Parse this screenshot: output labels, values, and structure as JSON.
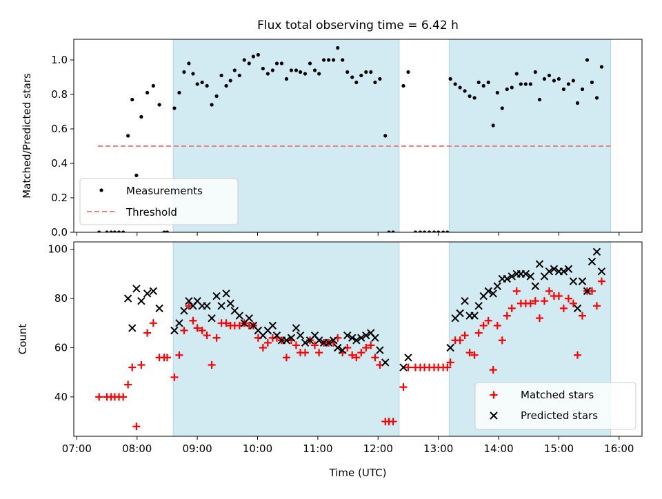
{
  "chart_data": {
    "title": "Flux total observing time = 6.42 h",
    "xlabel": "Time (UTC)",
    "xlim": [
      6.95,
      16.38
    ],
    "xticks": [
      {
        "v": 7,
        "label": "07:00"
      },
      {
        "v": 8,
        "label": "08:00"
      },
      {
        "v": 9,
        "label": "09:00"
      },
      {
        "v": 10,
        "label": "10:00"
      },
      {
        "v": 11,
        "label": "11:00"
      },
      {
        "v": 12,
        "label": "12:00"
      },
      {
        "v": 13,
        "label": "13:00"
      },
      {
        "v": 14,
        "label": "14:00"
      },
      {
        "v": 15,
        "label": "15:00"
      },
      {
        "v": 16,
        "label": "16:00"
      }
    ],
    "shaded_spans": [
      [
        8.6,
        12.35
      ],
      [
        13.18,
        15.86
      ]
    ],
    "shade_color": "#add8e6",
    "top": {
      "type": "scatter",
      "ylabel": "Matched/Predicted stars",
      "ylim": [
        0,
        1.12
      ],
      "yticks": [
        {
          "v": 0,
          "label": "0.0"
        },
        {
          "v": 0.2,
          "label": "0.2"
        },
        {
          "v": 0.4,
          "label": "0.4"
        },
        {
          "v": 0.6,
          "label": "0.6"
        },
        {
          "v": 0.8,
          "label": "0.8"
        },
        {
          "v": 1.0,
          "label": "1.0"
        }
      ],
      "threshold": {
        "value": 0.5,
        "x_range": [
          7.35,
          15.86
        ],
        "color": "#f08080"
      },
      "legend": {
        "position": "lower-left",
        "measurements_label": "Measurements",
        "threshold_label": "Threshold"
      },
      "measurements": [
        [
          7.37,
          0
        ],
        [
          7.5,
          0
        ],
        [
          7.57,
          0
        ],
        [
          7.63,
          0
        ],
        [
          7.7,
          0
        ],
        [
          7.77,
          0
        ],
        [
          7.85,
          0.56
        ],
        [
          7.92,
          0.77
        ],
        [
          7.99,
          0.33
        ],
        [
          8.07,
          0.67
        ],
        [
          8.17,
          0.81
        ],
        [
          8.27,
          0.85
        ],
        [
          8.37,
          0.74
        ],
        [
          8.45,
          0
        ],
        [
          8.5,
          0
        ],
        [
          8.62,
          0.72
        ],
        [
          8.7,
          0.81
        ],
        [
          8.78,
          0.93
        ],
        [
          8.86,
          0.98
        ],
        [
          8.93,
          0.92
        ],
        [
          9.0,
          0.86
        ],
        [
          9.08,
          0.87
        ],
        [
          9.16,
          0.85
        ],
        [
          9.24,
          0.74
        ],
        [
          9.32,
          0.79
        ],
        [
          9.4,
          0.91
        ],
        [
          9.48,
          0.85
        ],
        [
          9.55,
          0.88
        ],
        [
          9.62,
          0.94
        ],
        [
          9.7,
          0.91
        ],
        [
          9.78,
          1.0
        ],
        [
          9.86,
          0.98
        ],
        [
          9.93,
          1.02
        ],
        [
          10.01,
          1.03
        ],
        [
          10.09,
          0.95
        ],
        [
          10.17,
          0.92
        ],
        [
          10.25,
          0.94
        ],
        [
          10.32,
          0.98
        ],
        [
          10.4,
          0.98
        ],
        [
          10.48,
          0.89
        ],
        [
          10.56,
          0.94
        ],
        [
          10.64,
          0.94
        ],
        [
          10.71,
          0.93
        ],
        [
          10.79,
          0.92
        ],
        [
          10.87,
          0.98
        ],
        [
          10.95,
          0.94
        ],
        [
          11.02,
          0.92
        ],
        [
          11.1,
          1.0
        ],
        [
          11.18,
          1.0
        ],
        [
          11.26,
          1.0
        ],
        [
          11.33,
          1.07
        ],
        [
          11.41,
          1.0
        ],
        [
          11.49,
          0.93
        ],
        [
          11.57,
          0.9
        ],
        [
          11.64,
          0.87
        ],
        [
          11.72,
          0.91
        ],
        [
          11.8,
          0.93
        ],
        [
          11.88,
          0.93
        ],
        [
          11.95,
          0.87
        ],
        [
          12.03,
          0.89
        ],
        [
          12.12,
          0.56
        ],
        [
          12.18,
          0
        ],
        [
          12.25,
          0
        ],
        [
          12.42,
          0.85
        ],
        [
          12.5,
          0.93
        ],
        [
          12.62,
          0
        ],
        [
          12.7,
          0
        ],
        [
          12.77,
          0
        ],
        [
          12.85,
          0
        ],
        [
          12.93,
          0
        ],
        [
          13.0,
          0
        ],
        [
          13.08,
          0
        ],
        [
          13.15,
          0
        ],
        [
          13.2,
          0.89
        ],
        [
          13.28,
          0.86
        ],
        [
          13.36,
          0.84
        ],
        [
          13.44,
          0.82
        ],
        [
          13.52,
          0.79
        ],
        [
          13.6,
          0.78
        ],
        [
          13.67,
          0.87
        ],
        [
          13.75,
          0.85
        ],
        [
          13.83,
          0.87
        ],
        [
          13.91,
          0.62
        ],
        [
          13.98,
          0.81
        ],
        [
          14.06,
          0.72
        ],
        [
          14.14,
          0.83
        ],
        [
          14.22,
          0.84
        ],
        [
          14.3,
          0.92
        ],
        [
          14.37,
          0.86
        ],
        [
          14.45,
          0.86
        ],
        [
          14.53,
          0.86
        ],
        [
          14.61,
          0.93
        ],
        [
          14.68,
          0.77
        ],
        [
          14.76,
          0.89
        ],
        [
          14.84,
          0.91
        ],
        [
          14.92,
          0.88
        ],
        [
          15.0,
          0.89
        ],
        [
          15.08,
          0.83
        ],
        [
          15.16,
          0.86
        ],
        [
          15.24,
          0.88
        ],
        [
          15.31,
          0.75
        ],
        [
          15.39,
          0.83
        ],
        [
          15.47,
          1.0
        ],
        [
          15.55,
          0.87
        ],
        [
          15.63,
          0.78
        ],
        [
          15.71,
          0.96
        ]
      ]
    },
    "bottom": {
      "type": "scatter",
      "ylabel": "Count",
      "ylim": [
        24,
        103
      ],
      "yticks": [
        {
          "v": 40,
          "label": "40"
        },
        {
          "v": 60,
          "label": "60"
        },
        {
          "v": 80,
          "label": "80"
        },
        {
          "v": 100,
          "label": "100"
        }
      ],
      "legend": {
        "position": "lower-right",
        "matched_label": "Matched stars",
        "predicted_label": "Predicted stars"
      },
      "matched_color": "#ff0000",
      "predicted_color": "#000000",
      "matched": [
        [
          7.37,
          40
        ],
        [
          7.5,
          40
        ],
        [
          7.57,
          40
        ],
        [
          7.63,
          40
        ],
        [
          7.7,
          40
        ],
        [
          7.77,
          40
        ],
        [
          7.85,
          45
        ],
        [
          7.92,
          52
        ],
        [
          7.99,
          28
        ],
        [
          8.07,
          53
        ],
        [
          8.17,
          66
        ],
        [
          8.27,
          70
        ],
        [
          8.37,
          56
        ],
        [
          8.45,
          56
        ],
        [
          8.5,
          56
        ],
        [
          8.62,
          48
        ],
        [
          8.7,
          57
        ],
        [
          8.78,
          67
        ],
        [
          8.86,
          77
        ],
        [
          8.93,
          71
        ],
        [
          9.0,
          68
        ],
        [
          9.08,
          67
        ],
        [
          9.16,
          65
        ],
        [
          9.24,
          53
        ],
        [
          9.32,
          64
        ],
        [
          9.4,
          70
        ],
        [
          9.48,
          70
        ],
        [
          9.55,
          69
        ],
        [
          9.62,
          69
        ],
        [
          9.7,
          69
        ],
        [
          9.78,
          70
        ],
        [
          9.86,
          69
        ],
        [
          9.93,
          69
        ],
        [
          10.01,
          64
        ],
        [
          10.09,
          60
        ],
        [
          10.17,
          62
        ],
        [
          10.25,
          64
        ],
        [
          10.32,
          64
        ],
        [
          10.4,
          63
        ],
        [
          10.48,
          56
        ],
        [
          10.56,
          63
        ],
        [
          10.64,
          61
        ],
        [
          10.71,
          58
        ],
        [
          10.79,
          58
        ],
        [
          10.87,
          63
        ],
        [
          10.95,
          61
        ],
        [
          11.02,
          58
        ],
        [
          11.1,
          62
        ],
        [
          11.18,
          62
        ],
        [
          11.26,
          62
        ],
        [
          11.33,
          64
        ],
        [
          11.41,
          58
        ],
        [
          11.49,
          60
        ],
        [
          11.57,
          57
        ],
        [
          11.64,
          56
        ],
        [
          11.72,
          58
        ],
        [
          11.8,
          60
        ],
        [
          11.88,
          61
        ],
        [
          11.95,
          56
        ],
        [
          12.03,
          53
        ],
        [
          12.12,
          30
        ],
        [
          12.18,
          30
        ],
        [
          12.25,
          30
        ],
        [
          12.42,
          44
        ],
        [
          12.5,
          52
        ],
        [
          12.62,
          52
        ],
        [
          12.7,
          52
        ],
        [
          12.77,
          52
        ],
        [
          12.85,
          52
        ],
        [
          12.93,
          52
        ],
        [
          13.0,
          52
        ],
        [
          13.08,
          52
        ],
        [
          13.15,
          52
        ],
        [
          13.2,
          54
        ],
        [
          13.28,
          63
        ],
        [
          13.36,
          63
        ],
        [
          13.44,
          65
        ],
        [
          13.52,
          58
        ],
        [
          13.6,
          57
        ],
        [
          13.67,
          66
        ],
        [
          13.75,
          69
        ],
        [
          13.83,
          71
        ],
        [
          13.91,
          51
        ],
        [
          13.98,
          69
        ],
        [
          14.06,
          63
        ],
        [
          14.14,
          73
        ],
        [
          14.22,
          76
        ],
        [
          14.3,
          83
        ],
        [
          14.37,
          78
        ],
        [
          14.45,
          78
        ],
        [
          14.53,
          78
        ],
        [
          14.61,
          79
        ],
        [
          14.68,
          72
        ],
        [
          14.76,
          79
        ],
        [
          14.84,
          83
        ],
        [
          14.92,
          81
        ],
        [
          15.0,
          81
        ],
        [
          15.08,
          76
        ],
        [
          15.16,
          80
        ],
        [
          15.24,
          78
        ],
        [
          15.31,
          57
        ],
        [
          15.39,
          73
        ],
        [
          15.47,
          83
        ],
        [
          15.55,
          83
        ],
        [
          15.63,
          77
        ],
        [
          15.71,
          87
        ]
      ],
      "predicted": [
        [
          7.85,
          80
        ],
        [
          7.92,
          68
        ],
        [
          7.99,
          84
        ],
        [
          8.07,
          79
        ],
        [
          8.17,
          82
        ],
        [
          8.27,
          83
        ],
        [
          8.37,
          76
        ],
        [
          8.62,
          67
        ],
        [
          8.7,
          70
        ],
        [
          8.78,
          75
        ],
        [
          8.86,
          79
        ],
        [
          8.93,
          77
        ],
        [
          9.0,
          79
        ],
        [
          9.08,
          77
        ],
        [
          9.16,
          77
        ],
        [
          9.24,
          72
        ],
        [
          9.32,
          81
        ],
        [
          9.4,
          77
        ],
        [
          9.48,
          82
        ],
        [
          9.55,
          78
        ],
        [
          9.62,
          75
        ],
        [
          9.7,
          73
        ],
        [
          9.78,
          70
        ],
        [
          9.86,
          72
        ],
        [
          9.93,
          69
        ],
        [
          10.01,
          67
        ],
        [
          10.09,
          65
        ],
        [
          10.17,
          67
        ],
        [
          10.25,
          69
        ],
        [
          10.32,
          65
        ],
        [
          10.4,
          63
        ],
        [
          10.48,
          63
        ],
        [
          10.56,
          64
        ],
        [
          10.64,
          68
        ],
        [
          10.71,
          65
        ],
        [
          10.79,
          62
        ],
        [
          10.87,
          63
        ],
        [
          10.95,
          65
        ],
        [
          11.02,
          63
        ],
        [
          11.1,
          62
        ],
        [
          11.18,
          62
        ],
        [
          11.26,
          63
        ],
        [
          11.33,
          60
        ],
        [
          11.41,
          59
        ],
        [
          11.49,
          65
        ],
        [
          11.57,
          64
        ],
        [
          11.64,
          63
        ],
        [
          11.72,
          64
        ],
        [
          11.8,
          65
        ],
        [
          11.88,
          66
        ],
        [
          11.95,
          64
        ],
        [
          12.03,
          59
        ],
        [
          12.12,
          54
        ],
        [
          12.42,
          52
        ],
        [
          12.5,
          56
        ],
        [
          13.2,
          60
        ],
        [
          13.28,
          72
        ],
        [
          13.36,
          74
        ],
        [
          13.44,
          79
        ],
        [
          13.52,
          73
        ],
        [
          13.6,
          73
        ],
        [
          13.67,
          77
        ],
        [
          13.75,
          81
        ],
        [
          13.83,
          83
        ],
        [
          13.91,
          82
        ],
        [
          13.98,
          85
        ],
        [
          14.06,
          88
        ],
        [
          14.14,
          88
        ],
        [
          14.22,
          89
        ],
        [
          14.3,
          90
        ],
        [
          14.37,
          90
        ],
        [
          14.45,
          90
        ],
        [
          14.53,
          89
        ],
        [
          14.61,
          85
        ],
        [
          14.68,
          94
        ],
        [
          14.76,
          89
        ],
        [
          14.84,
          91
        ],
        [
          14.92,
          92
        ],
        [
          15.0,
          91
        ],
        [
          15.08,
          91
        ],
        [
          15.16,
          92
        ],
        [
          15.24,
          87
        ],
        [
          15.31,
          76
        ],
        [
          15.39,
          87
        ],
        [
          15.47,
          83
        ],
        [
          15.55,
          95
        ],
        [
          15.63,
          99
        ],
        [
          15.71,
          91
        ]
      ]
    }
  }
}
